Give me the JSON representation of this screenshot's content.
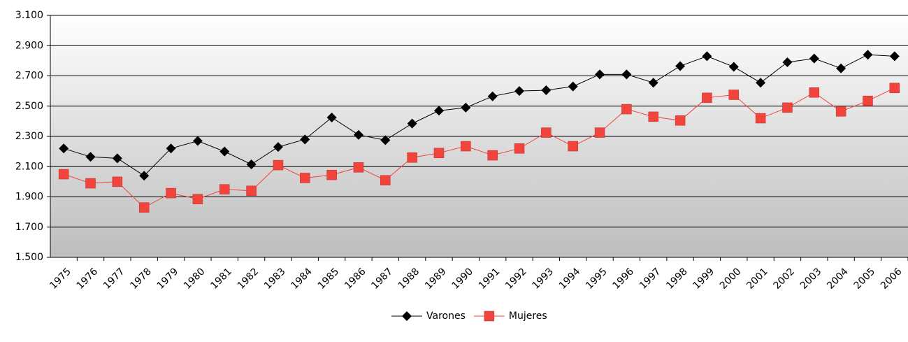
{
  "chart_data": {
    "type": "line",
    "categories": [
      "1975",
      "1976",
      "1977",
      "1978",
      "1979",
      "1980",
      "1981",
      "1982",
      "1983",
      "1984",
      "1985",
      "1986",
      "1987",
      "1988",
      "1989",
      "1990",
      "1991",
      "1992",
      "1993",
      "1994",
      "1995",
      "1996",
      "1997",
      "1998",
      "1999",
      "2000",
      "2001",
      "2002",
      "2003",
      "2004",
      "2005",
      "2006"
    ],
    "series": [
      {
        "name": "Varones",
        "color": "#000000",
        "marker": "diamond",
        "values": [
          2220,
          2165,
          2155,
          2040,
          2220,
          2270,
          2200,
          2115,
          2230,
          2280,
          2425,
          2310,
          2275,
          2385,
          2470,
          2490,
          2565,
          2600,
          2605,
          2630,
          2710,
          2710,
          2655,
          2765,
          2830,
          2760,
          2655,
          2790,
          2815,
          2750,
          2840,
          2830
        ]
      },
      {
        "name": "Mujeres",
        "color": "#f0443c",
        "marker": "square",
        "values": [
          2050,
          1990,
          2000,
          1830,
          1925,
          1885,
          1950,
          1940,
          2110,
          2025,
          2045,
          2095,
          2010,
          2160,
          2190,
          2235,
          2175,
          2220,
          2325,
          2235,
          2325,
          2480,
          2430,
          2405,
          2555,
          2575,
          2420,
          2490,
          2590,
          2465,
          2535,
          2620
        ]
      }
    ],
    "ylim": [
      1500,
      3100
    ],
    "yticks": [
      {
        "value": 1500,
        "label": "1.500"
      },
      {
        "value": 1700,
        "label": "1.700"
      },
      {
        "value": 1900,
        "label": "1.900"
      },
      {
        "value": 2100,
        "label": "2.100"
      },
      {
        "value": 2300,
        "label": "2.300"
      },
      {
        "value": 2500,
        "label": "2.500"
      },
      {
        "value": 2700,
        "label": "2.700"
      },
      {
        "value": 2900,
        "label": "2.900"
      },
      {
        "value": 3100,
        "label": "3.100"
      }
    ],
    "grid": true,
    "legend": "bottom"
  }
}
